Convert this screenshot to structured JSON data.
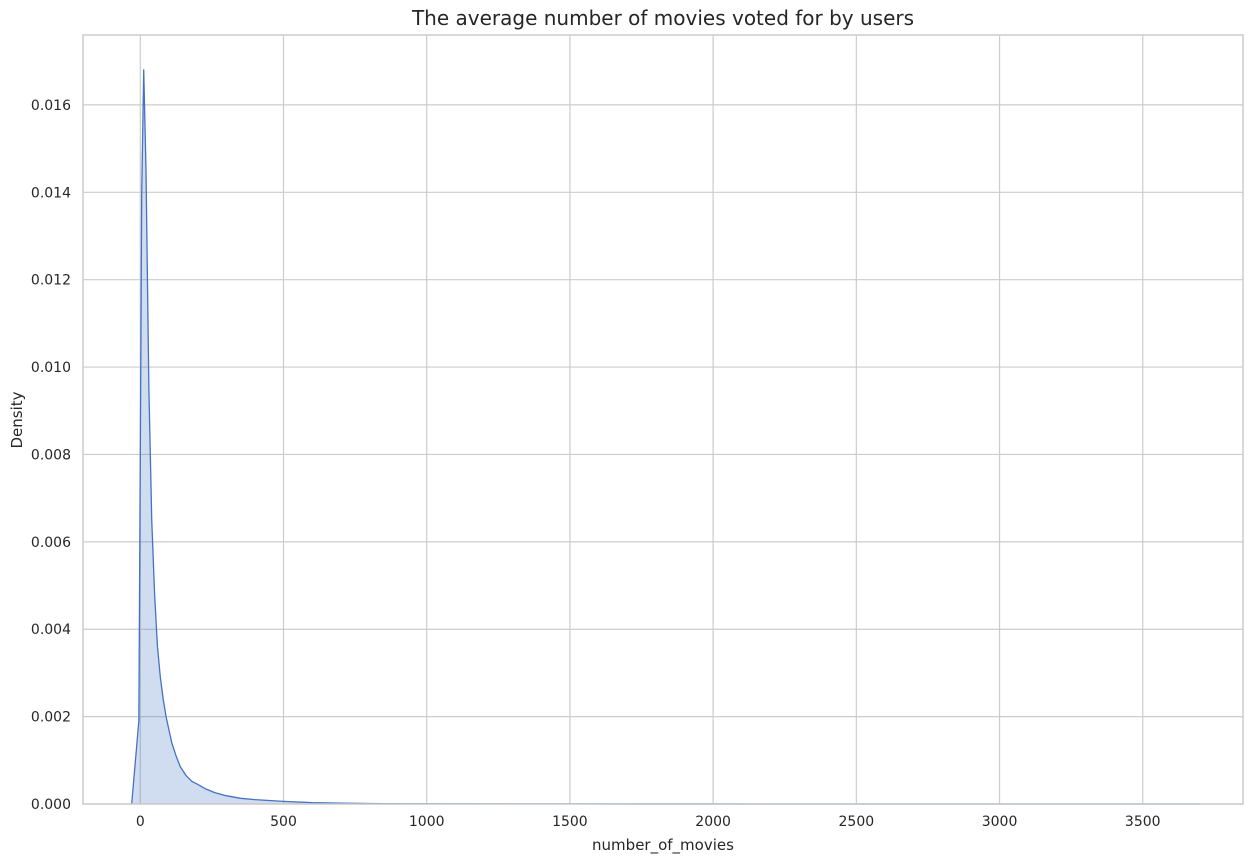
{
  "chart_data": {
    "type": "area",
    "title": "The average number of movies voted for by users",
    "xlabel": "number_of_movies",
    "ylabel": "Density",
    "xlim": [
      -200,
      3850
    ],
    "ylim": [
      0,
      0.0176
    ],
    "x_ticks": [
      0,
      500,
      1000,
      1500,
      2000,
      2500,
      3000,
      3500
    ],
    "x_tick_labels": [
      "0",
      "500",
      "1000",
      "1500",
      "2000",
      "2500",
      "3000",
      "3500"
    ],
    "y_ticks": [
      0,
      0.002,
      0.004,
      0.006,
      0.008,
      0.01,
      0.012,
      0.014,
      0.016
    ],
    "y_tick_labels": [
      "0.000",
      "0.002",
      "0.004",
      "0.006",
      "0.008",
      "0.010",
      "0.012",
      "0.014",
      "0.016"
    ],
    "grid": true,
    "series": [
      {
        "color": "#4472c4",
        "fill_color": "#4472c4",
        "fill_opacity": 0.25,
        "x": [
          -30,
          -5,
          5,
          12,
          20,
          30,
          40,
          50,
          60,
          70,
          80,
          90,
          100,
          110,
          125,
          140,
          160,
          180,
          200,
          230,
          260,
          300,
          350,
          400,
          500,
          600,
          700,
          800,
          1000,
          1500,
          2000,
          2500,
          3000,
          3500,
          3700
        ],
        "y": [
          0,
          0.0019,
          0.014,
          0.0168,
          0.0145,
          0.0095,
          0.0065,
          0.0048,
          0.0036,
          0.0029,
          0.0024,
          0.002,
          0.0017,
          0.0014,
          0.0011,
          0.00085,
          0.00065,
          0.00052,
          0.00045,
          0.00034,
          0.00026,
          0.00019,
          0.00013,
          0.0001,
          6e-05,
          3e-05,
          2e-05,
          1e-05,
          5e-06,
          2e-06,
          1e-06,
          5e-07,
          3e-07,
          2e-07,
          0
        ]
      }
    ]
  }
}
